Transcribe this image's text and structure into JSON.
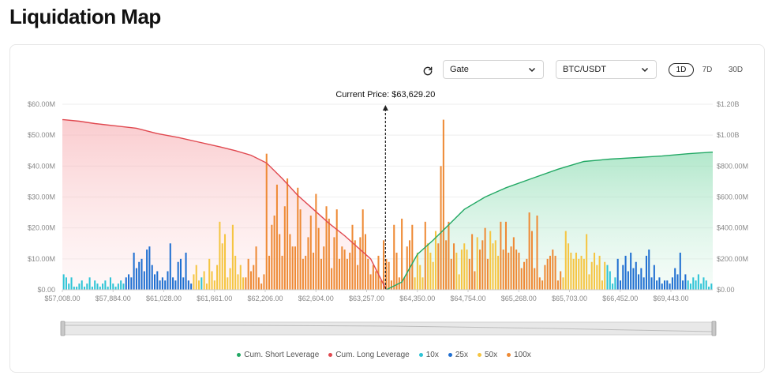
{
  "page": {
    "title": "Liquidation Map"
  },
  "controls": {
    "exchange": "Gate",
    "pair": "BTC/USDT",
    "timeframes": [
      {
        "label": "1D",
        "active": true
      },
      {
        "label": "7D",
        "active": false
      },
      {
        "label": "30D",
        "active": false
      }
    ],
    "icons": {
      "refresh": "refresh-icon",
      "chevron": "chevron-down-icon"
    }
  },
  "chart_data": {
    "type": "bar",
    "current_price_label": "Current Price: $63,629.20",
    "x_ticks": [
      "$57,008.00",
      "$57,884.00",
      "$61,028.00",
      "$61,661.00",
      "$62,206.00",
      "$62,604.00",
      "$63,257.00",
      "$64,350.00",
      "$64,754.00",
      "$65,268.00",
      "$65,703.00",
      "$66,452.00",
      "$69,443.00"
    ],
    "y_left_ticks": [
      "$0.00",
      "$10.00M",
      "$20.00M",
      "$30.00M",
      "$40.00M",
      "$50.00M",
      "$60.00M"
    ],
    "y_right_ticks": [
      "$0.00",
      "$200.00M",
      "$400.00M",
      "$600.00M",
      "$800.00M",
      "$1.00B",
      "$1.20B"
    ],
    "y_left_range": [
      0,
      60
    ],
    "y_right_range": [
      0,
      1200
    ],
    "current_price_index": 124,
    "bar_count": 250,
    "leverage_colors": {
      "10x": "#2ec4d6",
      "25x": "#1f6fd1",
      "50x": "#f5c542",
      "100x": "#ee8a35"
    },
    "bars": [
      [
        5,
        "10x"
      ],
      [
        4,
        "10x"
      ],
      [
        2,
        "10x"
      ],
      [
        4,
        "10x"
      ],
      [
        1,
        "10x"
      ],
      [
        1,
        "10x"
      ],
      [
        2,
        "10x"
      ],
      [
        3,
        "10x"
      ],
      [
        1,
        "10x"
      ],
      [
        2,
        "10x"
      ],
      [
        4,
        "10x"
      ],
      [
        1,
        "10x"
      ],
      [
        3,
        "10x"
      ],
      [
        2,
        "10x"
      ],
      [
        1,
        "10x"
      ],
      [
        2,
        "10x"
      ],
      [
        3,
        "10x"
      ],
      [
        1,
        "10x"
      ],
      [
        4,
        "10x"
      ],
      [
        2,
        "10x"
      ],
      [
        1,
        "10x"
      ],
      [
        2,
        "10x"
      ],
      [
        3,
        "10x"
      ],
      [
        2,
        "10x"
      ],
      [
        4,
        "25x"
      ],
      [
        5,
        "25x"
      ],
      [
        4,
        "25x"
      ],
      [
        12,
        "25x"
      ],
      [
        7,
        "25x"
      ],
      [
        9,
        "25x"
      ],
      [
        10,
        "25x"
      ],
      [
        6,
        "25x"
      ],
      [
        13,
        "25x"
      ],
      [
        14,
        "25x"
      ],
      [
        8,
        "25x"
      ],
      [
        5,
        "25x"
      ],
      [
        6,
        "25x"
      ],
      [
        3,
        "25x"
      ],
      [
        4,
        "25x"
      ],
      [
        3,
        "25x"
      ],
      [
        6,
        "25x"
      ],
      [
        15,
        "25x"
      ],
      [
        4,
        "25x"
      ],
      [
        3,
        "25x"
      ],
      [
        9,
        "25x"
      ],
      [
        10,
        "25x"
      ],
      [
        4,
        "25x"
      ],
      [
        12,
        "25x"
      ],
      [
        3,
        "25x"
      ],
      [
        2,
        "25x"
      ],
      [
        5,
        "50x"
      ],
      [
        8,
        "50x"
      ],
      [
        3,
        "50x"
      ],
      [
        4,
        "10x"
      ],
      [
        6,
        "50x"
      ],
      [
        2,
        "50x"
      ],
      [
        10,
        "50x"
      ],
      [
        6,
        "50x"
      ],
      [
        3,
        "50x"
      ],
      [
        8,
        "50x"
      ],
      [
        22,
        "50x"
      ],
      [
        15,
        "50x"
      ],
      [
        18,
        "50x"
      ],
      [
        4,
        "50x"
      ],
      [
        7,
        "50x"
      ],
      [
        21,
        "50x"
      ],
      [
        11,
        "50x"
      ],
      [
        5,
        "50x"
      ],
      [
        8,
        "50x"
      ],
      [
        4,
        "50x"
      ],
      [
        4,
        "100x"
      ],
      [
        10,
        "100x"
      ],
      [
        6,
        "100x"
      ],
      [
        8,
        "100x"
      ],
      [
        14,
        "100x"
      ],
      [
        4,
        "100x"
      ],
      [
        2,
        "100x"
      ],
      [
        5,
        "100x"
      ],
      [
        44,
        "100x"
      ],
      [
        11,
        "100x"
      ],
      [
        21,
        "100x"
      ],
      [
        24,
        "100x"
      ],
      [
        34,
        "100x"
      ],
      [
        18,
        "100x"
      ],
      [
        11,
        "100x"
      ],
      [
        27,
        "100x"
      ],
      [
        36,
        "100x"
      ],
      [
        18,
        "100x"
      ],
      [
        14,
        "100x"
      ],
      [
        14,
        "100x"
      ],
      [
        33,
        "100x"
      ],
      [
        26,
        "100x"
      ],
      [
        10,
        "100x"
      ],
      [
        11,
        "100x"
      ],
      [
        17,
        "100x"
      ],
      [
        24,
        "100x"
      ],
      [
        12,
        "100x"
      ],
      [
        31,
        "100x"
      ],
      [
        20,
        "100x"
      ],
      [
        10,
        "100x"
      ],
      [
        14,
        "100x"
      ],
      [
        27,
        "100x"
      ],
      [
        23,
        "100x"
      ],
      [
        7,
        "100x"
      ],
      [
        17,
        "100x"
      ],
      [
        26,
        "100x"
      ],
      [
        10,
        "100x"
      ],
      [
        14,
        "100x"
      ],
      [
        13,
        "100x"
      ],
      [
        10,
        "100x"
      ],
      [
        12,
        "100x"
      ],
      [
        21,
        "100x"
      ],
      [
        16,
        "100x"
      ],
      [
        8,
        "100x"
      ],
      [
        17,
        "100x"
      ],
      [
        26,
        "100x"
      ],
      [
        18,
        "100x"
      ],
      [
        10,
        "100x"
      ],
      [
        5,
        "100x"
      ],
      [
        8,
        "100x"
      ],
      [
        6,
        "100x"
      ],
      [
        11,
        "100x"
      ],
      [
        3,
        "100x"
      ],
      [
        16,
        "100x"
      ],
      [
        10,
        "100x"
      ],
      [
        9,
        "100x"
      ],
      [
        3,
        "100x"
      ],
      [
        21,
        "100x"
      ],
      [
        12,
        "100x"
      ],
      [
        4,
        "100x"
      ],
      [
        23,
        "100x"
      ],
      [
        4,
        "100x"
      ],
      [
        14,
        "100x"
      ],
      [
        16,
        "100x"
      ],
      [
        21,
        "100x"
      ],
      [
        4,
        "50x"
      ],
      [
        12,
        "50x"
      ],
      [
        8,
        "50x"
      ],
      [
        4,
        "50x"
      ],
      [
        22,
        "100x"
      ],
      [
        15,
        "50x"
      ],
      [
        12,
        "50x"
      ],
      [
        9,
        "50x"
      ],
      [
        19,
        "50x"
      ],
      [
        15,
        "100x"
      ],
      [
        40,
        "100x"
      ],
      [
        55,
        "100x"
      ],
      [
        16,
        "100x"
      ],
      [
        22,
        "100x"
      ],
      [
        10,
        "100x"
      ],
      [
        15,
        "100x"
      ],
      [
        12,
        "50x"
      ],
      [
        5,
        "50x"
      ],
      [
        13,
        "50x"
      ],
      [
        15,
        "50x"
      ],
      [
        13,
        "50x"
      ],
      [
        10,
        "100x"
      ],
      [
        18,
        "100x"
      ],
      [
        6,
        "100x"
      ],
      [
        17,
        "50x"
      ],
      [
        13,
        "100x"
      ],
      [
        16,
        "100x"
      ],
      [
        20,
        "100x"
      ],
      [
        10,
        "100x"
      ],
      [
        19,
        "50x"
      ],
      [
        15,
        "50x"
      ],
      [
        16,
        "50x"
      ],
      [
        11,
        "50x"
      ],
      [
        22,
        "100x"
      ],
      [
        13,
        "100x"
      ],
      [
        22,
        "100x"
      ],
      [
        12,
        "100x"
      ],
      [
        14,
        "100x"
      ],
      [
        17,
        "100x"
      ],
      [
        13,
        "100x"
      ],
      [
        12,
        "100x"
      ],
      [
        7,
        "100x"
      ],
      [
        9,
        "100x"
      ],
      [
        10,
        "100x"
      ],
      [
        25,
        "100x"
      ],
      [
        19,
        "100x"
      ],
      [
        7,
        "100x"
      ],
      [
        24,
        "100x"
      ],
      [
        4,
        "100x"
      ],
      [
        3,
        "100x"
      ],
      [
        8,
        "100x"
      ],
      [
        10,
        "100x"
      ],
      [
        11,
        "100x"
      ],
      [
        13,
        "100x"
      ],
      [
        11,
        "100x"
      ],
      [
        3,
        "100x"
      ],
      [
        6,
        "100x"
      ],
      [
        4,
        "50x"
      ],
      [
        19,
        "50x"
      ],
      [
        15,
        "50x"
      ],
      [
        12,
        "50x"
      ],
      [
        10,
        "50x"
      ],
      [
        12,
        "50x"
      ],
      [
        10,
        "50x"
      ],
      [
        11,
        "50x"
      ],
      [
        10,
        "50x"
      ],
      [
        18,
        "50x"
      ],
      [
        5,
        "50x"
      ],
      [
        9,
        "50x"
      ],
      [
        12,
        "50x"
      ],
      [
        8,
        "50x"
      ],
      [
        11,
        "50x"
      ],
      [
        3,
        "50x"
      ],
      [
        9,
        "50x"
      ],
      [
        8,
        "10x"
      ],
      [
        6,
        "10x"
      ],
      [
        2,
        "10x"
      ],
      [
        4,
        "10x"
      ],
      [
        10,
        "25x"
      ],
      [
        3,
        "25x"
      ],
      [
        8,
        "25x"
      ],
      [
        11,
        "25x"
      ],
      [
        6,
        "25x"
      ],
      [
        12,
        "25x"
      ],
      [
        7,
        "25x"
      ],
      [
        9,
        "25x"
      ],
      [
        5,
        "25x"
      ],
      [
        7,
        "25x"
      ],
      [
        4,
        "25x"
      ],
      [
        11,
        "25x"
      ],
      [
        13,
        "25x"
      ],
      [
        4,
        "25x"
      ],
      [
        8,
        "25x"
      ],
      [
        3,
        "25x"
      ],
      [
        4,
        "25x"
      ],
      [
        2,
        "25x"
      ],
      [
        3,
        "25x"
      ],
      [
        3,
        "25x"
      ],
      [
        2,
        "25x"
      ],
      [
        4,
        "25x"
      ],
      [
        7,
        "25x"
      ],
      [
        5,
        "25x"
      ],
      [
        12,
        "25x"
      ],
      [
        3,
        "25x"
      ],
      [
        5,
        "25x"
      ],
      [
        3,
        "10x"
      ],
      [
        2,
        "10x"
      ],
      [
        4,
        "10x"
      ],
      [
        3,
        "10x"
      ],
      [
        5,
        "10x"
      ],
      [
        2,
        "10x"
      ],
      [
        4,
        "10x"
      ],
      [
        3,
        "10x"
      ],
      [
        1,
        "10x"
      ],
      [
        2,
        "10x"
      ]
    ],
    "cum_long": {
      "name": "Cum. Long Leverage",
      "color": "#e0484f",
      "points": [
        [
          0,
          1100
        ],
        [
          6,
          1090
        ],
        [
          12,
          1075
        ],
        [
          20,
          1060
        ],
        [
          28,
          1045
        ],
        [
          36,
          1010
        ],
        [
          44,
          985
        ],
        [
          52,
          955
        ],
        [
          60,
          925
        ],
        [
          66,
          900
        ],
        [
          72,
          870
        ],
        [
          78,
          820
        ],
        [
          84,
          720
        ],
        [
          90,
          610
        ],
        [
          96,
          520
        ],
        [
          102,
          430
        ],
        [
          108,
          350
        ],
        [
          114,
          260
        ],
        [
          118,
          200
        ],
        [
          124,
          0
        ]
      ]
    },
    "cum_short": {
      "name": "Cum. Short Leverage",
      "color": "#22a864",
      "points": [
        [
          124,
          0
        ],
        [
          130,
          50
        ],
        [
          136,
          230
        ],
        [
          142,
          320
        ],
        [
          148,
          420
        ],
        [
          154,
          520
        ],
        [
          162,
          600
        ],
        [
          170,
          660
        ],
        [
          180,
          720
        ],
        [
          190,
          780
        ],
        [
          200,
          830
        ],
        [
          210,
          845
        ],
        [
          220,
          855
        ],
        [
          230,
          865
        ],
        [
          240,
          880
        ],
        [
          249,
          890
        ]
      ]
    },
    "legend": [
      {
        "label": "Cum. Short Leverage",
        "color": "#22a864"
      },
      {
        "label": "Cum. Long Leverage",
        "color": "#e0484f"
      },
      {
        "label": "10x",
        "color": "#2ec4d6"
      },
      {
        "label": "25x",
        "color": "#1f6fd1"
      },
      {
        "label": "50x",
        "color": "#f5c542"
      },
      {
        "label": "100x",
        "color": "#ee8a35"
      }
    ]
  }
}
